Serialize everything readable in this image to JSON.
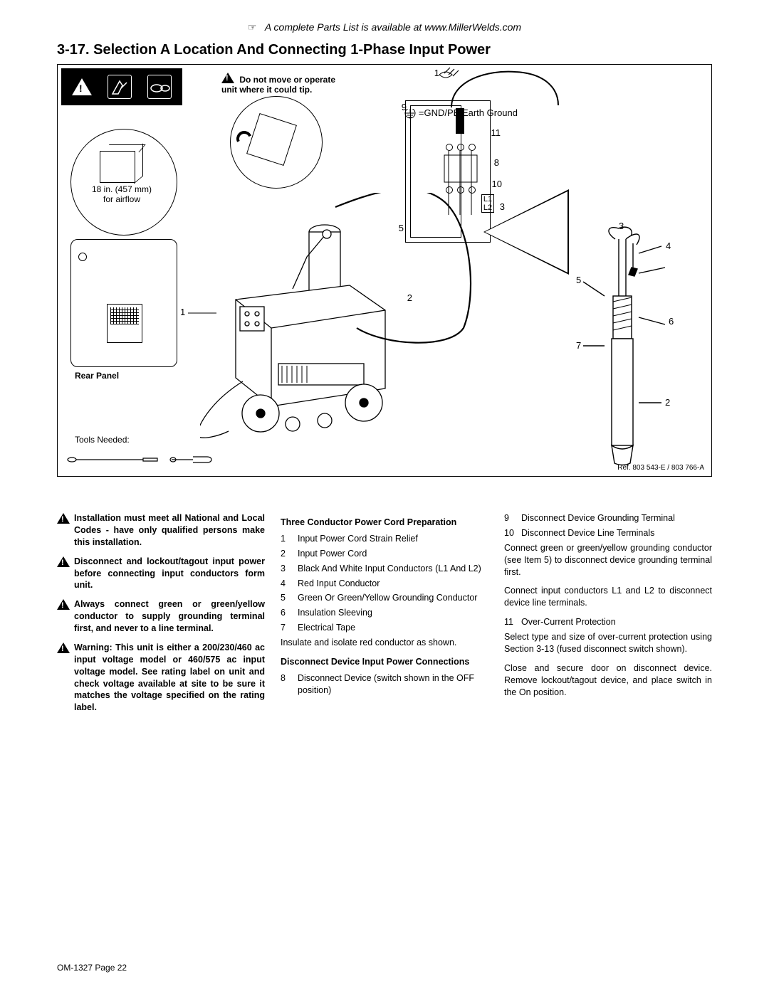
{
  "top_note": "A complete Parts List is available at www.MillerWelds.com",
  "section_title": "3-17. Selection A Location And Connecting 1-Phase Input Power",
  "figure": {
    "tip_warning": "Do not move or operate unit where it could tip.",
    "airflow_line1": "18 in. (457 mm)",
    "airflow_line2": "for airflow",
    "rear_panel": "Rear Panel",
    "tools_needed": "Tools Needed:",
    "ref": "Ref. 803 543-E / 803 766-A",
    "gnd_label": "=GND/PE Earth Ground",
    "L1": "L1",
    "L2": "L2",
    "callouts": {
      "c1": "1",
      "c2": "2",
      "c3": "3",
      "c4": "4",
      "c5": "5",
      "c6": "6",
      "c7": "7",
      "c8": "8",
      "c9": "9",
      "c10": "10",
      "c11": "11"
    }
  },
  "warnings": [
    "Installation must meet all National and Local Codes - have only qualified persons make this installation.",
    "Disconnect and lockout/tagout input power before connecting input conductors form unit.",
    "Always connect green or green/yellow conductor to supply grounding terminal first, and never to a line terminal.",
    "Warning: This unit is either a 200/230/460 ac input voltage model or 460/575 ac input voltage model. See rating label on unit and check voltage available at site to be sure it matches the voltage specified on the rating label."
  ],
  "col2": {
    "head1": "Three Conductor Power Cord Preparation",
    "items1": [
      {
        "n": "1",
        "t": "Input Power Cord Strain Relief"
      },
      {
        "n": "2",
        "t": "Input Power Cord"
      },
      {
        "n": "3",
        "t": "Black And White Input Conductors (L1 And L2)"
      },
      {
        "n": "4",
        "t": "Red Input Conductor"
      },
      {
        "n": "5",
        "t": "Green Or Green/Yellow Grounding Conductor"
      },
      {
        "n": "6",
        "t": "Insulation Sleeving"
      },
      {
        "n": "7",
        "t": "Electrical Tape"
      }
    ],
    "note1": "Insulate and isolate red conductor as shown.",
    "head2": "Disconnect Device Input Power Connections",
    "items2": [
      {
        "n": "8",
        "t": "Disconnect Device (switch shown in the OFF position)"
      }
    ]
  },
  "col3": {
    "items1": [
      {
        "n": "9",
        "t": "Disconnect Device Grounding Terminal"
      },
      {
        "n": "10",
        "t": "Disconnect Device Line Terminals"
      }
    ],
    "p1": "Connect green or green/yellow grounding conductor (see Item 5) to disconnect device grounding terminal first.",
    "p2": "Connect input conductors L1 and L2 to disconnect device line terminals.",
    "items2": [
      {
        "n": "11",
        "t": "Over-Current Protection"
      }
    ],
    "p3": "Select type and size of over-current protection using Section 3-13 (fused disconnect switch shown).",
    "p4": "Close and secure door on disconnect device. Remove lockout/tagout device, and place switch in the On position."
  },
  "footer": "OM-1327 Page 22"
}
